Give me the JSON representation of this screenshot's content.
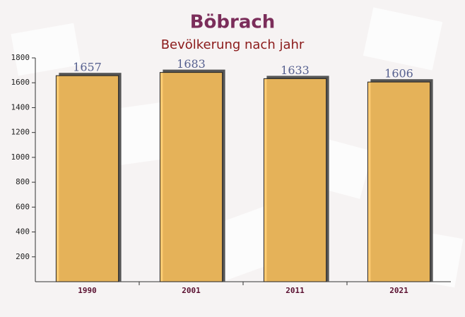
{
  "chart_data": {
    "type": "bar",
    "title": "Böbrach",
    "subtitle": "Bevölkerung nach jahr",
    "categories": [
      "1990",
      "2001",
      "2011",
      "2021"
    ],
    "values": [
      1657,
      1683,
      1633,
      1606
    ],
    "color": "#ffc35a",
    "ylim": [
      0,
      1800
    ],
    "yticks": [
      200,
      400,
      600,
      800,
      1000,
      1200,
      1400,
      1600,
      1800
    ]
  }
}
